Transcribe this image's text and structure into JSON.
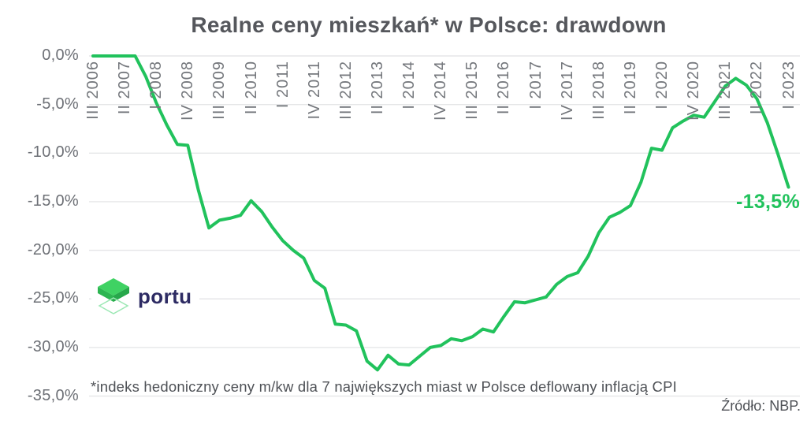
{
  "title": "Realne ceny mieszkań* w Polsce: drawdown",
  "footnote": "*indeks hedoniczny ceny m/kw dla 7 największych miast w Polsce deflowany inflacją CPI",
  "source": "Źródło: NBP.",
  "logo": {
    "text": "portu"
  },
  "colors": {
    "line": "#21c25c",
    "grid": "#e5e6e8",
    "title": "#55575c",
    "axis_labels": "#6d7076",
    "footnote": "#4e5156",
    "end_label": "#21c25c",
    "logo_navy": "#2d2b63",
    "logo_green_top": "#3fd263",
    "logo_green_left": "#2db551",
    "logo_green_right": "#27a84b",
    "logo_outline": "#9ce8b4"
  },
  "chart_data": {
    "type": "line",
    "title": "Realne ceny mieszkań* w Polsce: drawdown",
    "grid": "horizontal",
    "legend": "none",
    "ylim": [
      -35,
      0
    ],
    "y_ticks": [
      "0,0%",
      "-5,0%",
      "-10,0%",
      "-15,0%",
      "-20,0%",
      "-25,0%",
      "-30,0%",
      "-35,0%"
    ],
    "y_tick_values": [
      0,
      -5,
      -10,
      -15,
      -20,
      -25,
      -30,
      -35
    ],
    "x_tick_labels": [
      "III 2006",
      "II 2007",
      "I 2008",
      "IV 2008",
      "III 2009",
      "II 2010",
      "I 2011",
      "IV 2011",
      "III 2012",
      "II 2013",
      "I 2014",
      "IV 2014",
      "III 2015",
      "II 2016",
      "I 2017",
      "IV 2017",
      "III 2018",
      "II 2019",
      "I 2020",
      "IV 2020",
      "III 2021",
      "II 2022",
      "I 2023"
    ],
    "x_tick_every": 3,
    "end_annotation": "-13,5%",
    "x": [
      "III 2006",
      "IV 2006",
      "I 2007",
      "II 2007",
      "III 2007",
      "IV 2007",
      "I 2008",
      "II 2008",
      "III 2008",
      "IV 2008",
      "I 2009",
      "II 2009",
      "III 2009",
      "IV 2009",
      "I 2010",
      "II 2010",
      "III 2010",
      "IV 2010",
      "I 2011",
      "II 2011",
      "III 2011",
      "IV 2011",
      "I 2012",
      "II 2012",
      "III 2012",
      "IV 2012",
      "I 2013",
      "II 2013",
      "III 2013",
      "IV 2013",
      "I 2014",
      "II 2014",
      "III 2014",
      "IV 2014",
      "I 2015",
      "II 2015",
      "III 2015",
      "IV 2015",
      "I 2016",
      "II 2016",
      "III 2016",
      "IV 2016",
      "I 2017",
      "II 2017",
      "III 2017",
      "IV 2017",
      "I 2018",
      "II 2018",
      "III 2018",
      "IV 2018",
      "I 2019",
      "II 2019",
      "III 2019",
      "IV 2019",
      "I 2020",
      "II 2020",
      "III 2020",
      "IV 2020",
      "I 2021",
      "II 2021",
      "III 2021",
      "IV 2021",
      "I 2022",
      "II 2022",
      "III 2022",
      "IV 2022",
      "I 2023"
    ],
    "values": [
      0.0,
      0.0,
      0.0,
      0.0,
      0.0,
      -2.1,
      -4.8,
      -7.1,
      -9.1,
      -9.2,
      -13.8,
      -17.7,
      -16.9,
      -16.7,
      -16.4,
      -14.9,
      -16.0,
      -17.6,
      -19.0,
      -20.0,
      -20.8,
      -23.1,
      -23.9,
      -27.6,
      -27.7,
      -28.3,
      -31.4,
      -32.3,
      -30.8,
      -31.7,
      -31.8,
      -30.9,
      -30.0,
      -29.8,
      -29.1,
      -29.3,
      -28.9,
      -28.1,
      -28.4,
      -26.8,
      -25.3,
      -25.4,
      -25.1,
      -24.8,
      -23.5,
      -22.7,
      -22.3,
      -20.6,
      -18.2,
      -16.6,
      -16.1,
      -15.4,
      -13.0,
      -9.5,
      -9.7,
      -7.4,
      -6.7,
      -6.1,
      -6.3,
      -4.7,
      -3.1,
      -2.3,
      -3.0,
      -4.4,
      -6.9,
      -10.1,
      -13.5
    ]
  }
}
